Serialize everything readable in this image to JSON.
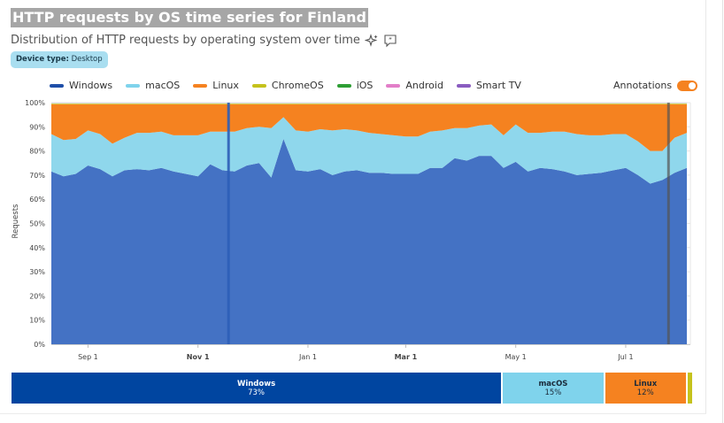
{
  "header": {
    "title": "HTTP requests by OS time series for Finland",
    "subtitle": "Distribution of HTTP requests by operating system over time",
    "filter_key": "Device type:",
    "filter_value": "Desktop"
  },
  "legend": [
    {
      "name": "Windows",
      "color": "#1f4fa8"
    },
    {
      "name": "macOS",
      "color": "#7fd3ec"
    },
    {
      "name": "Linux",
      "color": "#f58220"
    },
    {
      "name": "ChromeOS",
      "color": "#c5c21c"
    },
    {
      "name": "iOS",
      "color": "#2e9e34"
    },
    {
      "name": "Android",
      "color": "#e27ec8"
    },
    {
      "name": "Smart TV",
      "color": "#8a5cc0"
    }
  ],
  "annotations_label": "Annotations",
  "chart_data": {
    "type": "area",
    "stacked": true,
    "ylabel": "Requests",
    "yticks": [
      "0%",
      "10%",
      "20%",
      "30%",
      "40%",
      "50%",
      "60%",
      "70%",
      "80%",
      "90%",
      "100%"
    ],
    "ylim": [
      0,
      100
    ],
    "xticks": [
      {
        "label": "Sep 1",
        "bold": false,
        "week": 3
      },
      {
        "label": "Nov 1",
        "bold": true,
        "week": 12
      },
      {
        "label": "Jan 1",
        "bold": false,
        "week": 21
      },
      {
        "label": "Mar 1",
        "bold": true,
        "week": 29
      },
      {
        "label": "May 1",
        "bold": false,
        "week": 38
      },
      {
        "label": "Jul 1",
        "bold": false,
        "week": 47
      }
    ],
    "x_range_weeks": [
      0,
      53
    ],
    "annotation_weeks": [
      14.5,
      50.5
    ],
    "series": [
      {
        "name": "Windows",
        "color": "#4472c4",
        "values": [
          71.5,
          69.5,
          70.5,
          74,
          72.5,
          69.5,
          72,
          72.5,
          72,
          73,
          71.5,
          70.5,
          69.5,
          74.5,
          72,
          71.5,
          74,
          75,
          69,
          85,
          72,
          71.5,
          72.5,
          70,
          71.5,
          72,
          71,
          71,
          70.5,
          70.5,
          70.5,
          73,
          73,
          77,
          76,
          78,
          78,
          73,
          75.5,
          71.5,
          73,
          72.5,
          71.5,
          70,
          70.5,
          71,
          72,
          73,
          70,
          66.5,
          68,
          71,
          73
        ]
      },
      {
        "name": "macOS",
        "color": "#8fd7ec",
        "values": [
          15.5,
          15,
          14.5,
          14.5,
          14.5,
          13.5,
          13.5,
          15,
          15.5,
          15,
          15,
          16,
          17,
          13.5,
          16,
          16.5,
          15.5,
          15,
          20.5,
          9,
          16.5,
          16.5,
          16.5,
          18.5,
          17.5,
          16.5,
          16.5,
          16,
          16,
          15.5,
          15.5,
          15,
          15.5,
          12.5,
          13.5,
          12.5,
          13,
          13.5,
          15.5,
          16,
          14.5,
          15.5,
          16.5,
          17,
          16,
          15.5,
          15,
          14,
          14,
          13.5,
          12,
          14.5,
          14.5
        ]
      },
      {
        "name": "Linux",
        "color": "#f58220",
        "values": [
          12.3,
          14.8,
          14.3,
          10.8,
          12.3,
          16.3,
          13.8,
          11.8,
          11.8,
          11.3,
          12.8,
          12.8,
          12.8,
          11.3,
          11.3,
          11.3,
          9.8,
          9.3,
          9.8,
          5.3,
          10.8,
          11.3,
          10.3,
          10.8,
          10.3,
          10.8,
          11.8,
          12.3,
          12.8,
          13.3,
          13.3,
          11.3,
          10.8,
          9.8,
          9.8,
          8.8,
          8.3,
          12.8,
          8.3,
          11.8,
          11.8,
          11.3,
          11.3,
          12.3,
          12.8,
          12.8,
          12.3,
          12.3,
          15.3,
          19.3,
          19.3,
          13.8,
          11.8
        ]
      },
      {
        "name": "ChromeOS",
        "color": "#d3cf43",
        "values": [
          0.7,
          0.7,
          0.7,
          0.7,
          0.7,
          0.7,
          0.7,
          0.7,
          0.7,
          0.7,
          0.7,
          0.7,
          0.7,
          0.7,
          0.7,
          0.7,
          0.7,
          0.7,
          0.7,
          0.7,
          0.7,
          0.7,
          0.7,
          0.7,
          0.7,
          0.7,
          0.7,
          0.7,
          0.7,
          0.7,
          0.7,
          0.7,
          0.7,
          0.7,
          0.7,
          0.7,
          0.7,
          0.7,
          0.7,
          0.7,
          0.7,
          0.7,
          0.7,
          0.7,
          0.7,
          0.7,
          0.7,
          0.7,
          0.7,
          0.7,
          0.7,
          0.7,
          0.7
        ]
      }
    ],
    "summary": [
      {
        "name": "Windows",
        "percent": "73%",
        "share": 73,
        "color": "#0045a0",
        "dark": false
      },
      {
        "name": "macOS",
        "percent": "15%",
        "share": 15,
        "color": "#7fd3ec",
        "dark": true
      },
      {
        "name": "Linux",
        "percent": "12%",
        "share": 12,
        "color": "#f58220",
        "dark": true
      },
      {
        "name": "",
        "percent": "",
        "share": 0.7,
        "color": "#c5c21c",
        "dark": true
      }
    ]
  }
}
